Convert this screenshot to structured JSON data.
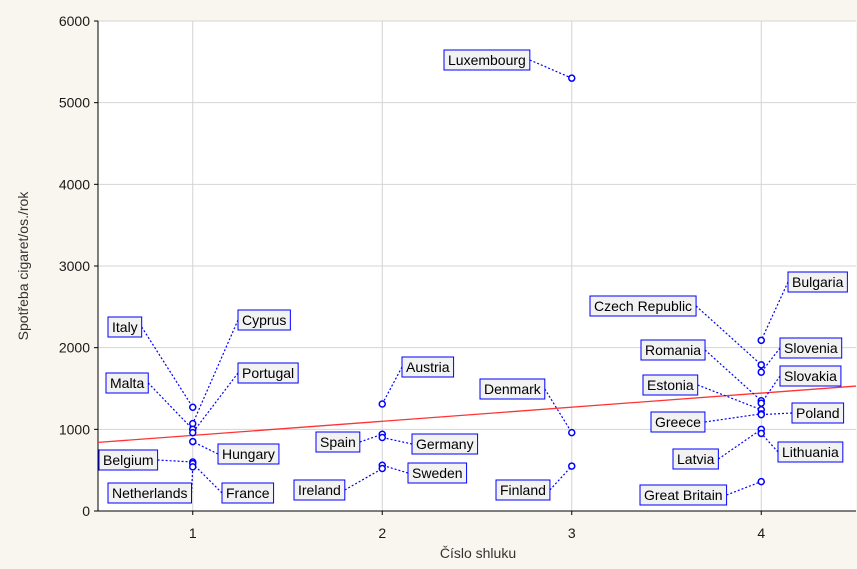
{
  "chart_data": {
    "type": "scatter",
    "title": "",
    "xlabel": "Číslo shluku",
    "ylabel": "Spotřeba cigaret/os./rok",
    "xlim": [
      0.5,
      4.5
    ],
    "ylim": [
      0,
      6000
    ],
    "x_ticks": [
      1,
      2,
      3,
      4
    ],
    "y_ticks": [
      0,
      1000,
      2000,
      3000,
      4000,
      5000,
      6000
    ],
    "grid": true,
    "colors": {
      "points": "#0000ff",
      "label_border": "#0000ff",
      "label_fill": "#f2f2f2",
      "trend": "#ff3333",
      "grid": "#d4d4d4",
      "axis": "#000000",
      "background": "#f8f6ee"
    },
    "trend_line": {
      "from": [
        0.5,
        840
      ],
      "to": [
        4.5,
        1530
      ]
    },
    "points": [
      {
        "label": "Italy",
        "x": 1,
        "y": 1270
      },
      {
        "label": "Cyprus",
        "x": 1,
        "y": 1070
      },
      {
        "label": "Malta",
        "x": 1,
        "y": 1000
      },
      {
        "label": "Portugal",
        "x": 1,
        "y": 960
      },
      {
        "label": "Hungary",
        "x": 1,
        "y": 850
      },
      {
        "label": "Belgium",
        "x": 1,
        "y": 600
      },
      {
        "label": "France",
        "x": 1,
        "y": 580
      },
      {
        "label": "Netherlands",
        "x": 1,
        "y": 540
      },
      {
        "label": "Austria",
        "x": 2,
        "y": 1310
      },
      {
        "label": "Spain",
        "x": 2,
        "y": 940
      },
      {
        "label": "Germany",
        "x": 2,
        "y": 900
      },
      {
        "label": "Sweden",
        "x": 2,
        "y": 560
      },
      {
        "label": "Ireland",
        "x": 2,
        "y": 520
      },
      {
        "label": "Luxembourg",
        "x": 3,
        "y": 5300
      },
      {
        "label": "Denmark",
        "x": 3,
        "y": 960
      },
      {
        "label": "Finland",
        "x": 3,
        "y": 550
      },
      {
        "label": "Bulgaria",
        "x": 4,
        "y": 2090
      },
      {
        "label": "Czech Republic",
        "x": 4,
        "y": 1790
      },
      {
        "label": "Slovenia",
        "x": 4,
        "y": 1700
      },
      {
        "label": "Romania",
        "x": 4,
        "y": 1350
      },
      {
        "label": "Slovakia",
        "x": 4,
        "y": 1320
      },
      {
        "label": "Estonia",
        "x": 4,
        "y": 1240
      },
      {
        "label": "Greece",
        "x": 4,
        "y": 1190
      },
      {
        "label": "Poland",
        "x": 4,
        "y": 1180
      },
      {
        "label": "Latvia",
        "x": 4,
        "y": 1000
      },
      {
        "label": "Lithuania",
        "x": 4,
        "y": 950
      },
      {
        "label": "Great Britain",
        "x": 4,
        "y": 360
      }
    ]
  }
}
